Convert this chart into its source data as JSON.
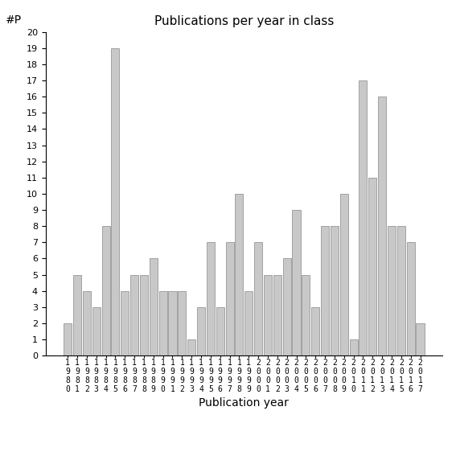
{
  "years": [
    "1980",
    "1981",
    "1982",
    "1983",
    "1984",
    "1985",
    "1986",
    "1987",
    "1988",
    "1989",
    "1990",
    "1991",
    "1992",
    "1993",
    "1994",
    "1995",
    "1996",
    "1997",
    "1998",
    "1999",
    "2000",
    "2001",
    "2002",
    "2003",
    "2004",
    "2005",
    "2006",
    "2007",
    "2008",
    "2009",
    "2010",
    "2011",
    "2012",
    "2013",
    "2014",
    "2015",
    "2016",
    "2017"
  ],
  "values": [
    2,
    5,
    4,
    3,
    8,
    19,
    4,
    5,
    5,
    6,
    4,
    4,
    4,
    1,
    3,
    7,
    3,
    7,
    10,
    4,
    7,
    5,
    5,
    6,
    9,
    5,
    3,
    8,
    8,
    10,
    1,
    17,
    11,
    16,
    8,
    8,
    7,
    2
  ],
  "title": "Publications per year in class",
  "xlabel": "Publication year",
  "ylabel": "#P",
  "bar_color": "#c8c8c8",
  "bar_edge_color": "#888888",
  "background_color": "#ffffff",
  "ylim": [
    0,
    20
  ],
  "yticks": [
    0,
    1,
    2,
    3,
    4,
    5,
    6,
    7,
    8,
    9,
    10,
    11,
    12,
    13,
    14,
    15,
    16,
    17,
    18,
    19,
    20
  ],
  "title_fontsize": 11,
  "axis_label_fontsize": 10,
  "tick_label_fontsize": 8,
  "xtick_fontsize": 7
}
